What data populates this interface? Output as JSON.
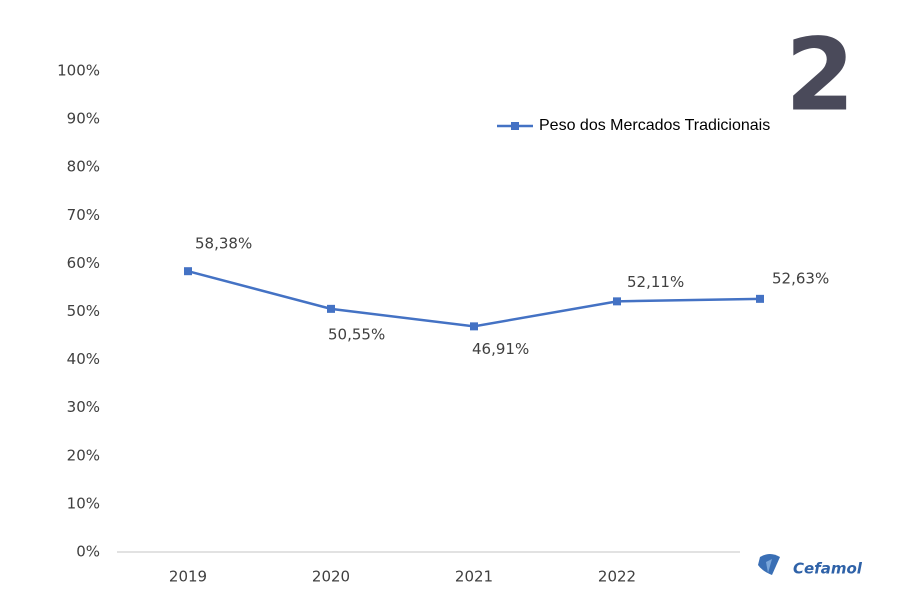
{
  "chart_data": {
    "type": "line",
    "categories": [
      "2019",
      "2020",
      "2021",
      "2022",
      null
    ],
    "series": [
      {
        "name": "Peso dos Mercados Tradicionais",
        "color": "#4472c4",
        "values": [
          58.38,
          50.55,
          46.91,
          52.11,
          52.63
        ],
        "value_labels": [
          "58,38%",
          "50,55%",
          "46,91%",
          "52,11%",
          "52,63%"
        ]
      }
    ],
    "ylim": [
      0,
      100
    ],
    "yticks": [
      {
        "value": 0,
        "label": "0%"
      },
      {
        "value": 10,
        "label": "10%"
      },
      {
        "value": 20,
        "label": "20%"
      },
      {
        "value": 30,
        "label": "30%"
      },
      {
        "value": 40,
        "label": "40%"
      },
      {
        "value": 50,
        "label": "50%"
      },
      {
        "value": 60,
        "label": "60%"
      },
      {
        "value": 70,
        "label": "70%"
      },
      {
        "value": 80,
        "label": "80%"
      },
      {
        "value": 90,
        "label": "90%"
      },
      {
        "value": 100,
        "label": "100%"
      }
    ],
    "grid": false,
    "legend": "top-right",
    "page_number": "2",
    "logo": "Cefamol"
  }
}
